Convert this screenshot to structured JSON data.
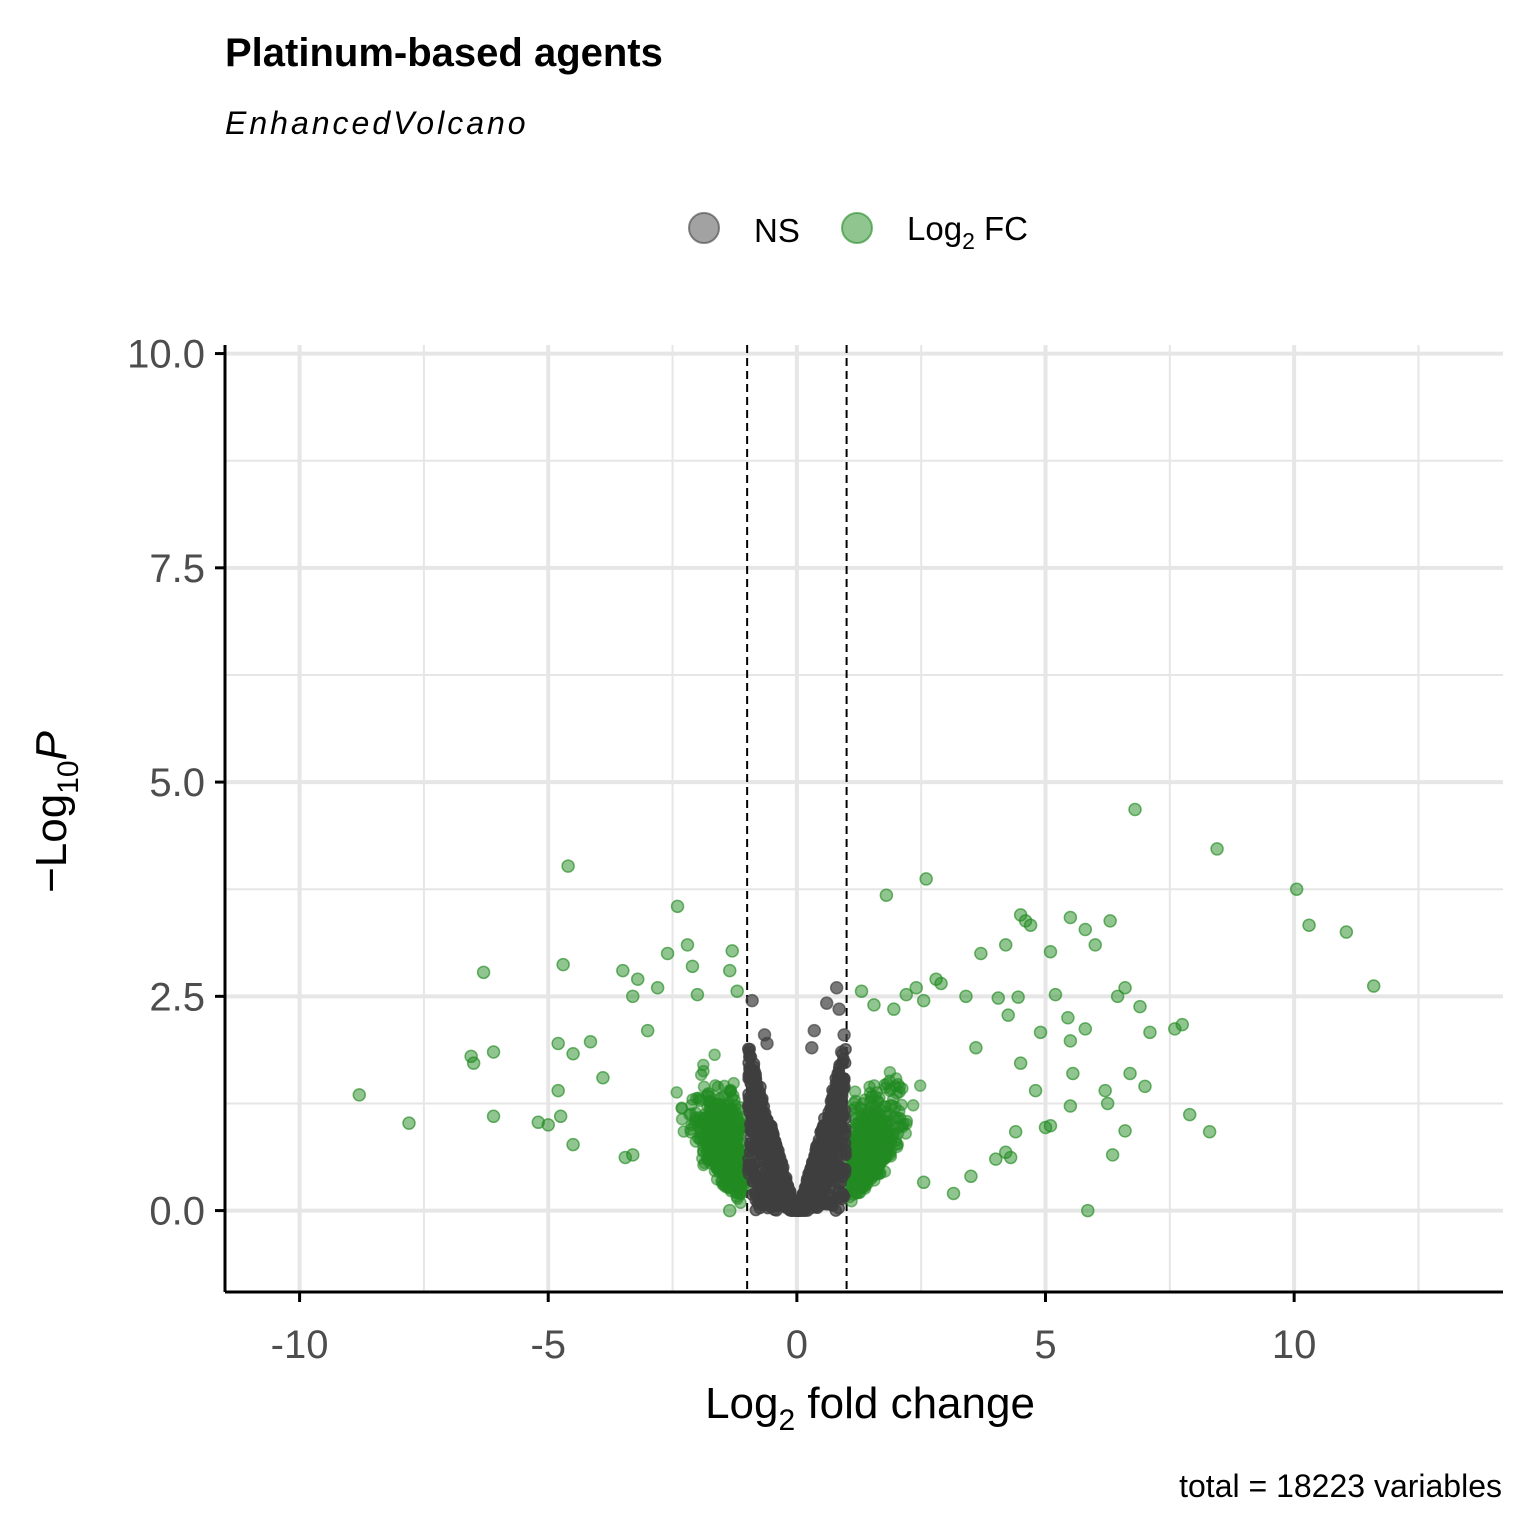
{
  "title": "Platinum-based agents",
  "subtitle": "EnhancedVolcano",
  "caption": "total = 18223 variables",
  "legend": {
    "placement": "top",
    "items": [
      {
        "label": "NS",
        "color": "#555555"
      },
      {
        "label_main": "Log",
        "label_sub": "2",
        "label_tail": " FC",
        "color": "#228B22"
      }
    ]
  },
  "colors": {
    "ns": "#3f3f3f",
    "fc": "#228B22",
    "grid": "#e6e6e6",
    "axis": "#000000",
    "tick_text": "#4d4d4d"
  },
  "chart_data": {
    "type": "scatter",
    "xlabel": {
      "main": "Log",
      "sub": "2",
      "tail": " fold change"
    },
    "ylabel": {
      "prefix": "−Log",
      "sub": "10",
      "italic": "P"
    },
    "xlim": [
      -11.5,
      14.2
    ],
    "ylim": [
      -0.95,
      10.1
    ],
    "x_ticks": [
      -10,
      -5,
      0,
      5,
      10
    ],
    "x_tick_labels": [
      "-10",
      "-5",
      "0",
      "5",
      "10"
    ],
    "y_ticks": [
      0,
      2.5,
      5,
      7.5,
      10
    ],
    "y_tick_labels": [
      "0.0",
      "2.5",
      "5.0",
      "7.5",
      "10.0"
    ],
    "grid": true,
    "fc_cutoff": [
      -1,
      1
    ],
    "series": [
      {
        "name": "NS",
        "points": [
          [
            -0.9,
            2.45
          ],
          [
            0.8,
            2.6
          ],
          [
            0.85,
            2.35
          ],
          [
            0.6,
            2.42
          ],
          [
            0.95,
            2.05
          ],
          [
            -0.65,
            2.05
          ],
          [
            -0.6,
            1.95
          ],
          [
            0.35,
            2.1
          ],
          [
            0.3,
            1.9
          ],
          [
            0.9,
            1.85
          ]
        ]
      },
      {
        "name": "Log2 FC",
        "points": [
          [
            -8.8,
            1.35
          ],
          [
            -7.8,
            1.02
          ],
          [
            -6.5,
            1.72
          ],
          [
            -6.55,
            1.8
          ],
          [
            -6.3,
            2.78
          ],
          [
            -6.1,
            1.1
          ],
          [
            -6.1,
            1.85
          ],
          [
            -5.2,
            1.03
          ],
          [
            -5.0,
            1.0
          ],
          [
            -4.8,
            1.95
          ],
          [
            -4.8,
            1.4
          ],
          [
            -4.75,
            1.1
          ],
          [
            -4.7,
            2.87
          ],
          [
            -4.6,
            4.02
          ],
          [
            -4.5,
            1.83
          ],
          [
            -4.5,
            0.77
          ],
          [
            -4.15,
            1.97
          ],
          [
            -3.9,
            1.55
          ],
          [
            -3.5,
            2.8
          ],
          [
            -3.3,
            2.5
          ],
          [
            -3.2,
            2.7
          ],
          [
            -2.8,
            2.6
          ],
          [
            -2.6,
            3.0
          ],
          [
            -2.4,
            3.55
          ],
          [
            -2.2,
            3.1
          ],
          [
            -2.1,
            2.85
          ],
          [
            -1.3,
            3.03
          ],
          [
            -1.35,
            2.8
          ],
          [
            -1.2,
            2.56
          ],
          [
            -3.45,
            0.62
          ],
          [
            -3.3,
            0.65
          ],
          [
            -1.35,
            0.0
          ],
          [
            -2.0,
            2.52
          ],
          [
            -3.0,
            2.1
          ],
          [
            1.3,
            2.56
          ],
          [
            1.8,
            3.68
          ],
          [
            2.6,
            3.87
          ],
          [
            2.8,
            2.7
          ],
          [
            3.4,
            2.5
          ],
          [
            3.7,
            3.0
          ],
          [
            4.2,
            3.1
          ],
          [
            4.5,
            3.45
          ],
          [
            4.6,
            3.38
          ],
          [
            4.7,
            3.33
          ],
          [
            5.1,
            3.02
          ],
          [
            5.2,
            2.52
          ],
          [
            5.5,
            3.42
          ],
          [
            5.8,
            3.28
          ],
          [
            6.0,
            3.1
          ],
          [
            6.3,
            3.38
          ],
          [
            6.6,
            2.6
          ],
          [
            6.8,
            4.68
          ],
          [
            6.9,
            2.38
          ],
          [
            7.1,
            2.08
          ],
          [
            7.6,
            2.12
          ],
          [
            7.75,
            2.17
          ],
          [
            7.9,
            1.12
          ],
          [
            8.3,
            0.92
          ],
          [
            8.45,
            4.22
          ],
          [
            10.05,
            3.75
          ],
          [
            10.3,
            3.33
          ],
          [
            11.05,
            3.25
          ],
          [
            11.6,
            2.62
          ],
          [
            6.2,
            1.4
          ],
          [
            6.25,
            1.25
          ],
          [
            6.35,
            0.65
          ],
          [
            6.45,
            2.5
          ],
          [
            6.6,
            0.93
          ],
          [
            6.7,
            1.6
          ],
          [
            7.0,
            1.45
          ],
          [
            5.85,
            0.0
          ],
          [
            5.55,
            1.6
          ],
          [
            5.5,
            1.22
          ],
          [
            5.0,
            0.97
          ],
          [
            5.1,
            0.99
          ],
          [
            4.4,
            0.92
          ],
          [
            4.3,
            0.62
          ],
          [
            4.0,
            0.6
          ],
          [
            4.2,
            0.68
          ],
          [
            4.5,
            1.72
          ],
          [
            4.9,
            2.08
          ],
          [
            4.8,
            1.4
          ],
          [
            3.6,
            1.9
          ],
          [
            3.15,
            0.2
          ],
          [
            2.55,
            0.33
          ],
          [
            3.5,
            0.4
          ],
          [
            2.9,
            2.65
          ],
          [
            2.55,
            2.45
          ],
          [
            2.2,
            2.52
          ],
          [
            1.95,
            2.35
          ],
          [
            1.55,
            2.4
          ],
          [
            2.4,
            2.6
          ],
          [
            4.05,
            2.48
          ],
          [
            4.45,
            2.49
          ],
          [
            5.8,
            2.12
          ],
          [
            4.25,
            2.28
          ],
          [
            5.45,
            2.25
          ],
          [
            5.5,
            1.98
          ]
        ]
      }
    ]
  }
}
